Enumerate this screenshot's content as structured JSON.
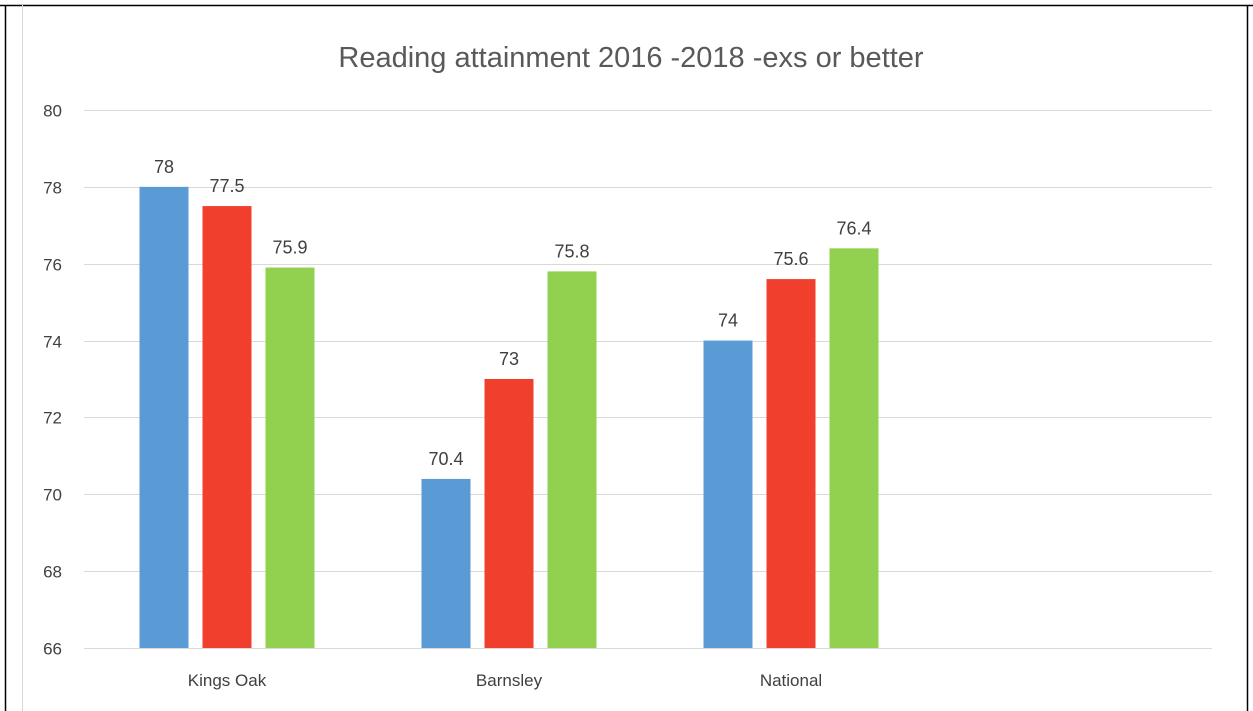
{
  "chart_data": {
    "type": "bar",
    "title": "Reading attainment 2016 -2018 -exs or better",
    "xlabel": "",
    "ylabel": "",
    "categories": [
      "Kings Oak",
      "Barnsley",
      "National"
    ],
    "series": [
      {
        "values": [
          78,
          70.4,
          74
        ],
        "color": "#5B9BD5"
      },
      {
        "values": [
          77.5,
          73,
          75.6
        ],
        "color": "#F0402D"
      },
      {
        "values": [
          75.9,
          75.8,
          76.4
        ],
        "color": "#92D050"
      }
    ],
    "ylim": [
      66,
      80
    ],
    "yticks": [
      66,
      68,
      70,
      72,
      74,
      76,
      78,
      80
    ],
    "grid": true,
    "legend": "none",
    "data_labels": true,
    "gridline_color": "#D9D9D9",
    "frame_color": "#000000"
  }
}
